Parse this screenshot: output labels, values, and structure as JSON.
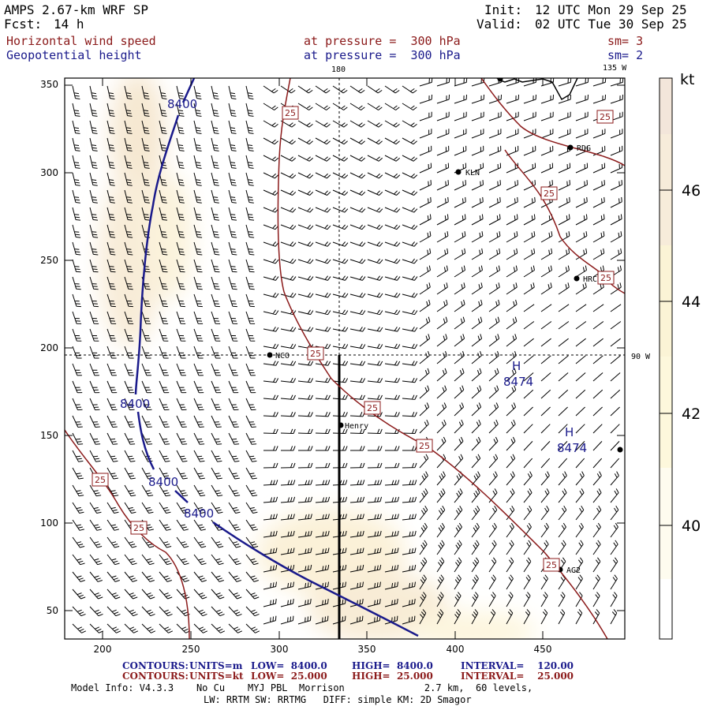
{
  "header": {
    "model_title": "AMPS 2.67-km WRF SP",
    "init_label": "Init:",
    "init_time": "12 UTC Mon 29 Sep 25",
    "fcst_label": "Fcst:",
    "fcst_value": "14 h",
    "valid_label": "Valid:",
    "valid_time": "02 UTC Tue 30 Sep 25"
  },
  "fields": [
    {
      "name": "Horizontal wind speed",
      "level": "at pressure =  300 hPa",
      "smoothing": "sm= 3",
      "color": "#8b1a1a"
    },
    {
      "name": "Geopotential height",
      "level": "at pressure =  300 hPa",
      "smoothing": "sm= 2",
      "color": "#1a1a8b"
    }
  ],
  "map": {
    "x_ticks": [
      "200",
      "250",
      "300",
      "350",
      "400",
      "450"
    ],
    "y_ticks": [
      "350",
      "300",
      "250",
      "200",
      "150",
      "100",
      "50"
    ],
    "meridian_labels": {
      "lon_180": "180",
      "lon_135w": "135 W",
      "lon_90w": "90 W"
    },
    "stations": [
      {
        "id": "KLN",
        "label": "KLN"
      },
      {
        "id": "RDG",
        "label": "RDG"
      },
      {
        "id": "HRC",
        "label": "HRC"
      },
      {
        "id": "NCO",
        "label": "NCO"
      },
      {
        "id": "Henry",
        "label": "Henry"
      },
      {
        "id": "AG2",
        "label": "AG2"
      }
    ],
    "height_contour_labels": [
      "8400",
      "8400",
      "8400",
      "8400"
    ],
    "highs": [
      {
        "symbol": "H",
        "value": "8474"
      },
      {
        "symbol": "H",
        "value": "8474"
      }
    ],
    "speed_contour_label": "25",
    "colors": {
      "height": "#1a1a8b",
      "speed": "#8b1a1a",
      "shade_light": "#fdf7dc",
      "shade_mid": "#f9eed0",
      "shade_dark": "#f5e4d2"
    }
  },
  "colorbar": {
    "unit": "kt",
    "labels": [
      "46",
      "44",
      "42",
      "40"
    ],
    "colors": [
      "#f3e6da",
      "#f7ecda",
      "#fbf4d6",
      "#fdf8dc",
      "#fefcef",
      "#ffffff"
    ]
  },
  "footer": {
    "contours_height": {
      "label": "CONTOURS:",
      "units": "UNITS=m",
      "low": "LOW=  8400.0",
      "high": "HIGH=  8400.0",
      "interval": "INTERVAL=    120.00"
    },
    "contours_speed": {
      "label": "CONTOURS:",
      "units": "UNITS=kt",
      "low": "LOW=  25.000",
      "high": "HIGH=  25.000",
      "interval": "INTERVAL=    25.000"
    },
    "model_info": "Model Info: V4.3.3    No Cu    MYJ PBL  Morrison              2.7 km,  60 levels,",
    "model_info2": "LW: RRTM SW: RRTMG   DIFF: simple KM: 2D Smagor"
  }
}
